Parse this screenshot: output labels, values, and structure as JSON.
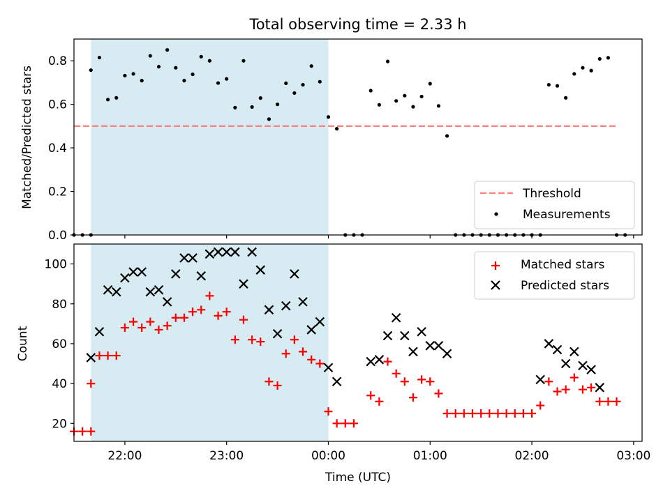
{
  "chart_data": [
    {
      "type": "scatter",
      "title": "Total observing time = 2.33 h",
      "xlabel": "",
      "ylabel": "Matched/Predicted stars",
      "xlim": [
        "21:30",
        "03:05"
      ],
      "ylim": [
        0,
        0.9
      ],
      "yticks": [
        0.0,
        0.2,
        0.4,
        0.6,
        0.8
      ],
      "ytick_labels": [
        "0.0",
        "0.2",
        "0.4",
        "0.6",
        "0.8"
      ],
      "xticks": [
        "22:00",
        "23:00",
        "00:00",
        "01:00",
        "02:00",
        "03:00"
      ],
      "grid": false,
      "legend": "lower-right",
      "shaded_interval": [
        "21:40",
        "00:00"
      ],
      "shaded_color": "#add8e6",
      "threshold": {
        "name": "Threshold",
        "value": 0.5,
        "x_range": [
          "21:30",
          "02:50"
        ],
        "color": "#ff7f7f"
      },
      "series": [
        {
          "name": "Measurements",
          "color": "#000000",
          "points": [
            [
              "21:30",
              0.0
            ],
            [
              "21:35",
              0.0
            ],
            [
              "21:40",
              0.0
            ],
            [
              "21:40",
              0.757
            ],
            [
              "21:45",
              0.815
            ],
            [
              "21:50",
              0.622
            ],
            [
              "21:55",
              0.63
            ],
            [
              "22:00",
              0.732
            ],
            [
              "22:05",
              0.74
            ],
            [
              "22:10",
              0.709
            ],
            [
              "22:15",
              0.823
            ],
            [
              "22:20",
              0.773
            ],
            [
              "22:25",
              0.85
            ],
            [
              "22:30",
              0.768
            ],
            [
              "22:35",
              0.709
            ],
            [
              "22:40",
              0.738
            ],
            [
              "22:45",
              0.819
            ],
            [
              "22:50",
              0.8
            ],
            [
              "22:55",
              0.698
            ],
            [
              "23:00",
              0.717
            ],
            [
              "23:05",
              0.585
            ],
            [
              "23:10",
              0.8
            ],
            [
              "23:15",
              0.588
            ],
            [
              "23:20",
              0.629
            ],
            [
              "23:25",
              0.532
            ],
            [
              "23:30",
              0.6
            ],
            [
              "23:35",
              0.697
            ],
            [
              "23:40",
              0.652
            ],
            [
              "23:45",
              0.69
            ],
            [
              "23:50",
              0.776
            ],
            [
              "23:55",
              0.704
            ],
            [
              "00:00",
              0.542
            ],
            [
              "00:05",
              0.488
            ],
            [
              "00:10",
              0.0
            ],
            [
              "00:15",
              0.0
            ],
            [
              "00:20",
              0.0
            ],
            [
              "00:25",
              0.663
            ],
            [
              "00:30",
              0.598
            ],
            [
              "00:35",
              0.797
            ],
            [
              "00:40",
              0.616
            ],
            [
              "00:45",
              0.64
            ],
            [
              "00:50",
              0.589
            ],
            [
              "00:55",
              0.636
            ],
            [
              "01:00",
              0.695
            ],
            [
              "01:05",
              0.593
            ],
            [
              "01:10",
              0.455
            ],
            [
              "01:15",
              0.0
            ],
            [
              "01:20",
              0.0
            ],
            [
              "01:25",
              0.0
            ],
            [
              "01:30",
              0.0
            ],
            [
              "01:35",
              0.0
            ],
            [
              "01:40",
              0.0
            ],
            [
              "01:45",
              0.0
            ],
            [
              "01:50",
              0.0
            ],
            [
              "01:55",
              0.0
            ],
            [
              "02:00",
              0.0
            ],
            [
              "02:05",
              0.0
            ],
            [
              "02:10",
              0.69
            ],
            [
              "02:15",
              0.685
            ],
            [
              "02:20",
              0.63
            ],
            [
              "02:25",
              0.74
            ],
            [
              "02:30",
              0.768
            ],
            [
              "02:35",
              0.755
            ],
            [
              "02:40",
              0.809
            ],
            [
              "02:45",
              0.814
            ],
            [
              "02:50",
              0.0
            ],
            [
              "02:55",
              0.0
            ]
          ]
        }
      ]
    },
    {
      "type": "scatter",
      "title": "",
      "xlabel": "Time (UTC)",
      "ylabel": "Count",
      "xlim": [
        "21:30",
        "03:05"
      ],
      "ylim": [
        11,
        110
      ],
      "yticks": [
        20,
        40,
        60,
        80,
        100
      ],
      "ytick_labels": [
        "20",
        "40",
        "60",
        "80",
        "100"
      ],
      "xticks": [
        "22:00",
        "23:00",
        "00:00",
        "01:00",
        "02:00",
        "03:00"
      ],
      "xtick_labels": [
        "22:00",
        "23:00",
        "00:00",
        "01:00",
        "02:00",
        "03:00"
      ],
      "grid": false,
      "legend": "top-right",
      "shaded_interval": [
        "21:40",
        "00:00"
      ],
      "shaded_color": "#add8e6",
      "series": [
        {
          "name": "Matched stars",
          "marker": "plus",
          "color": "#ff0000",
          "points": [
            [
              "21:30",
              16
            ],
            [
              "21:35",
              16
            ],
            [
              "21:40",
              16
            ],
            [
              "21:40",
              40
            ],
            [
              "21:45",
              54
            ],
            [
              "21:50",
              54
            ],
            [
              "21:55",
              54
            ],
            [
              "22:00",
              68
            ],
            [
              "22:05",
              71
            ],
            [
              "22:10",
              68
            ],
            [
              "22:15",
              71
            ],
            [
              "22:20",
              67
            ],
            [
              "22:25",
              69
            ],
            [
              "22:30",
              73
            ],
            [
              "22:35",
              73
            ],
            [
              "22:40",
              76
            ],
            [
              "22:45",
              77
            ],
            [
              "22:50",
              84
            ],
            [
              "22:55",
              74
            ],
            [
              "23:00",
              76
            ],
            [
              "23:05",
              62
            ],
            [
              "23:10",
              72
            ],
            [
              "23:15",
              62
            ],
            [
              "23:20",
              61
            ],
            [
              "23:25",
              41
            ],
            [
              "23:30",
              39
            ],
            [
              "23:35",
              55
            ],
            [
              "23:40",
              62
            ],
            [
              "23:45",
              56
            ],
            [
              "23:50",
              52
            ],
            [
              "23:55",
              50
            ],
            [
              "00:00",
              26
            ],
            [
              "00:05",
              20
            ],
            [
              "00:10",
              20
            ],
            [
              "00:15",
              20
            ],
            [
              "00:25",
              34
            ],
            [
              "00:30",
              31
            ],
            [
              "00:35",
              51
            ],
            [
              "00:40",
              45
            ],
            [
              "00:45",
              41
            ],
            [
              "00:50",
              33
            ],
            [
              "00:55",
              42
            ],
            [
              "01:00",
              41
            ],
            [
              "01:05",
              35
            ],
            [
              "01:10",
              25
            ],
            [
              "01:15",
              25
            ],
            [
              "01:20",
              25
            ],
            [
              "01:25",
              25
            ],
            [
              "01:30",
              25
            ],
            [
              "01:35",
              25
            ],
            [
              "01:40",
              25
            ],
            [
              "01:45",
              25
            ],
            [
              "01:50",
              25
            ],
            [
              "01:55",
              25
            ],
            [
              "02:00",
              25
            ],
            [
              "02:05",
              29
            ],
            [
              "02:10",
              41
            ],
            [
              "02:15",
              36
            ],
            [
              "02:20",
              37
            ],
            [
              "02:25",
              43
            ],
            [
              "02:30",
              37
            ],
            [
              "02:35",
              38
            ],
            [
              "02:40",
              31
            ],
            [
              "02:45",
              31
            ],
            [
              "02:50",
              31
            ]
          ]
        },
        {
          "name": "Predicted stars",
          "marker": "x",
          "color": "#000000",
          "points": [
            [
              "21:40",
              53
            ],
            [
              "21:45",
              66
            ],
            [
              "21:50",
              87
            ],
            [
              "21:55",
              86
            ],
            [
              "22:00",
              93
            ],
            [
              "22:05",
              96
            ],
            [
              "22:10",
              96
            ],
            [
              "22:15",
              86
            ],
            [
              "22:20",
              87
            ],
            [
              "22:25",
              81
            ],
            [
              "22:30",
              95
            ],
            [
              "22:35",
              103
            ],
            [
              "22:40",
              103
            ],
            [
              "22:45",
              94
            ],
            [
              "22:50",
              105
            ],
            [
              "22:55",
              106
            ],
            [
              "23:00",
              106
            ],
            [
              "23:05",
              106
            ],
            [
              "23:10",
              90
            ],
            [
              "23:15",
              106
            ],
            [
              "23:20",
              97
            ],
            [
              "23:25",
              77
            ],
            [
              "23:30",
              65
            ],
            [
              "23:35",
              79
            ],
            [
              "23:40",
              95
            ],
            [
              "23:45",
              81
            ],
            [
              "23:50",
              67
            ],
            [
              "23:55",
              71
            ],
            [
              "00:00",
              48
            ],
            [
              "00:05",
              41
            ],
            [
              "00:25",
              51
            ],
            [
              "00:30",
              52
            ],
            [
              "00:35",
              64
            ],
            [
              "00:40",
              73
            ],
            [
              "00:45",
              64
            ],
            [
              "00:50",
              56
            ],
            [
              "00:55",
              66
            ],
            [
              "01:00",
              59
            ],
            [
              "01:05",
              59
            ],
            [
              "01:10",
              55
            ],
            [
              "02:05",
              42
            ],
            [
              "02:10",
              60
            ],
            [
              "02:15",
              57
            ],
            [
              "02:20",
              50
            ],
            [
              "02:25",
              56
            ],
            [
              "02:30",
              49
            ],
            [
              "02:35",
              47
            ],
            [
              "02:40",
              38
            ]
          ]
        }
      ]
    }
  ]
}
